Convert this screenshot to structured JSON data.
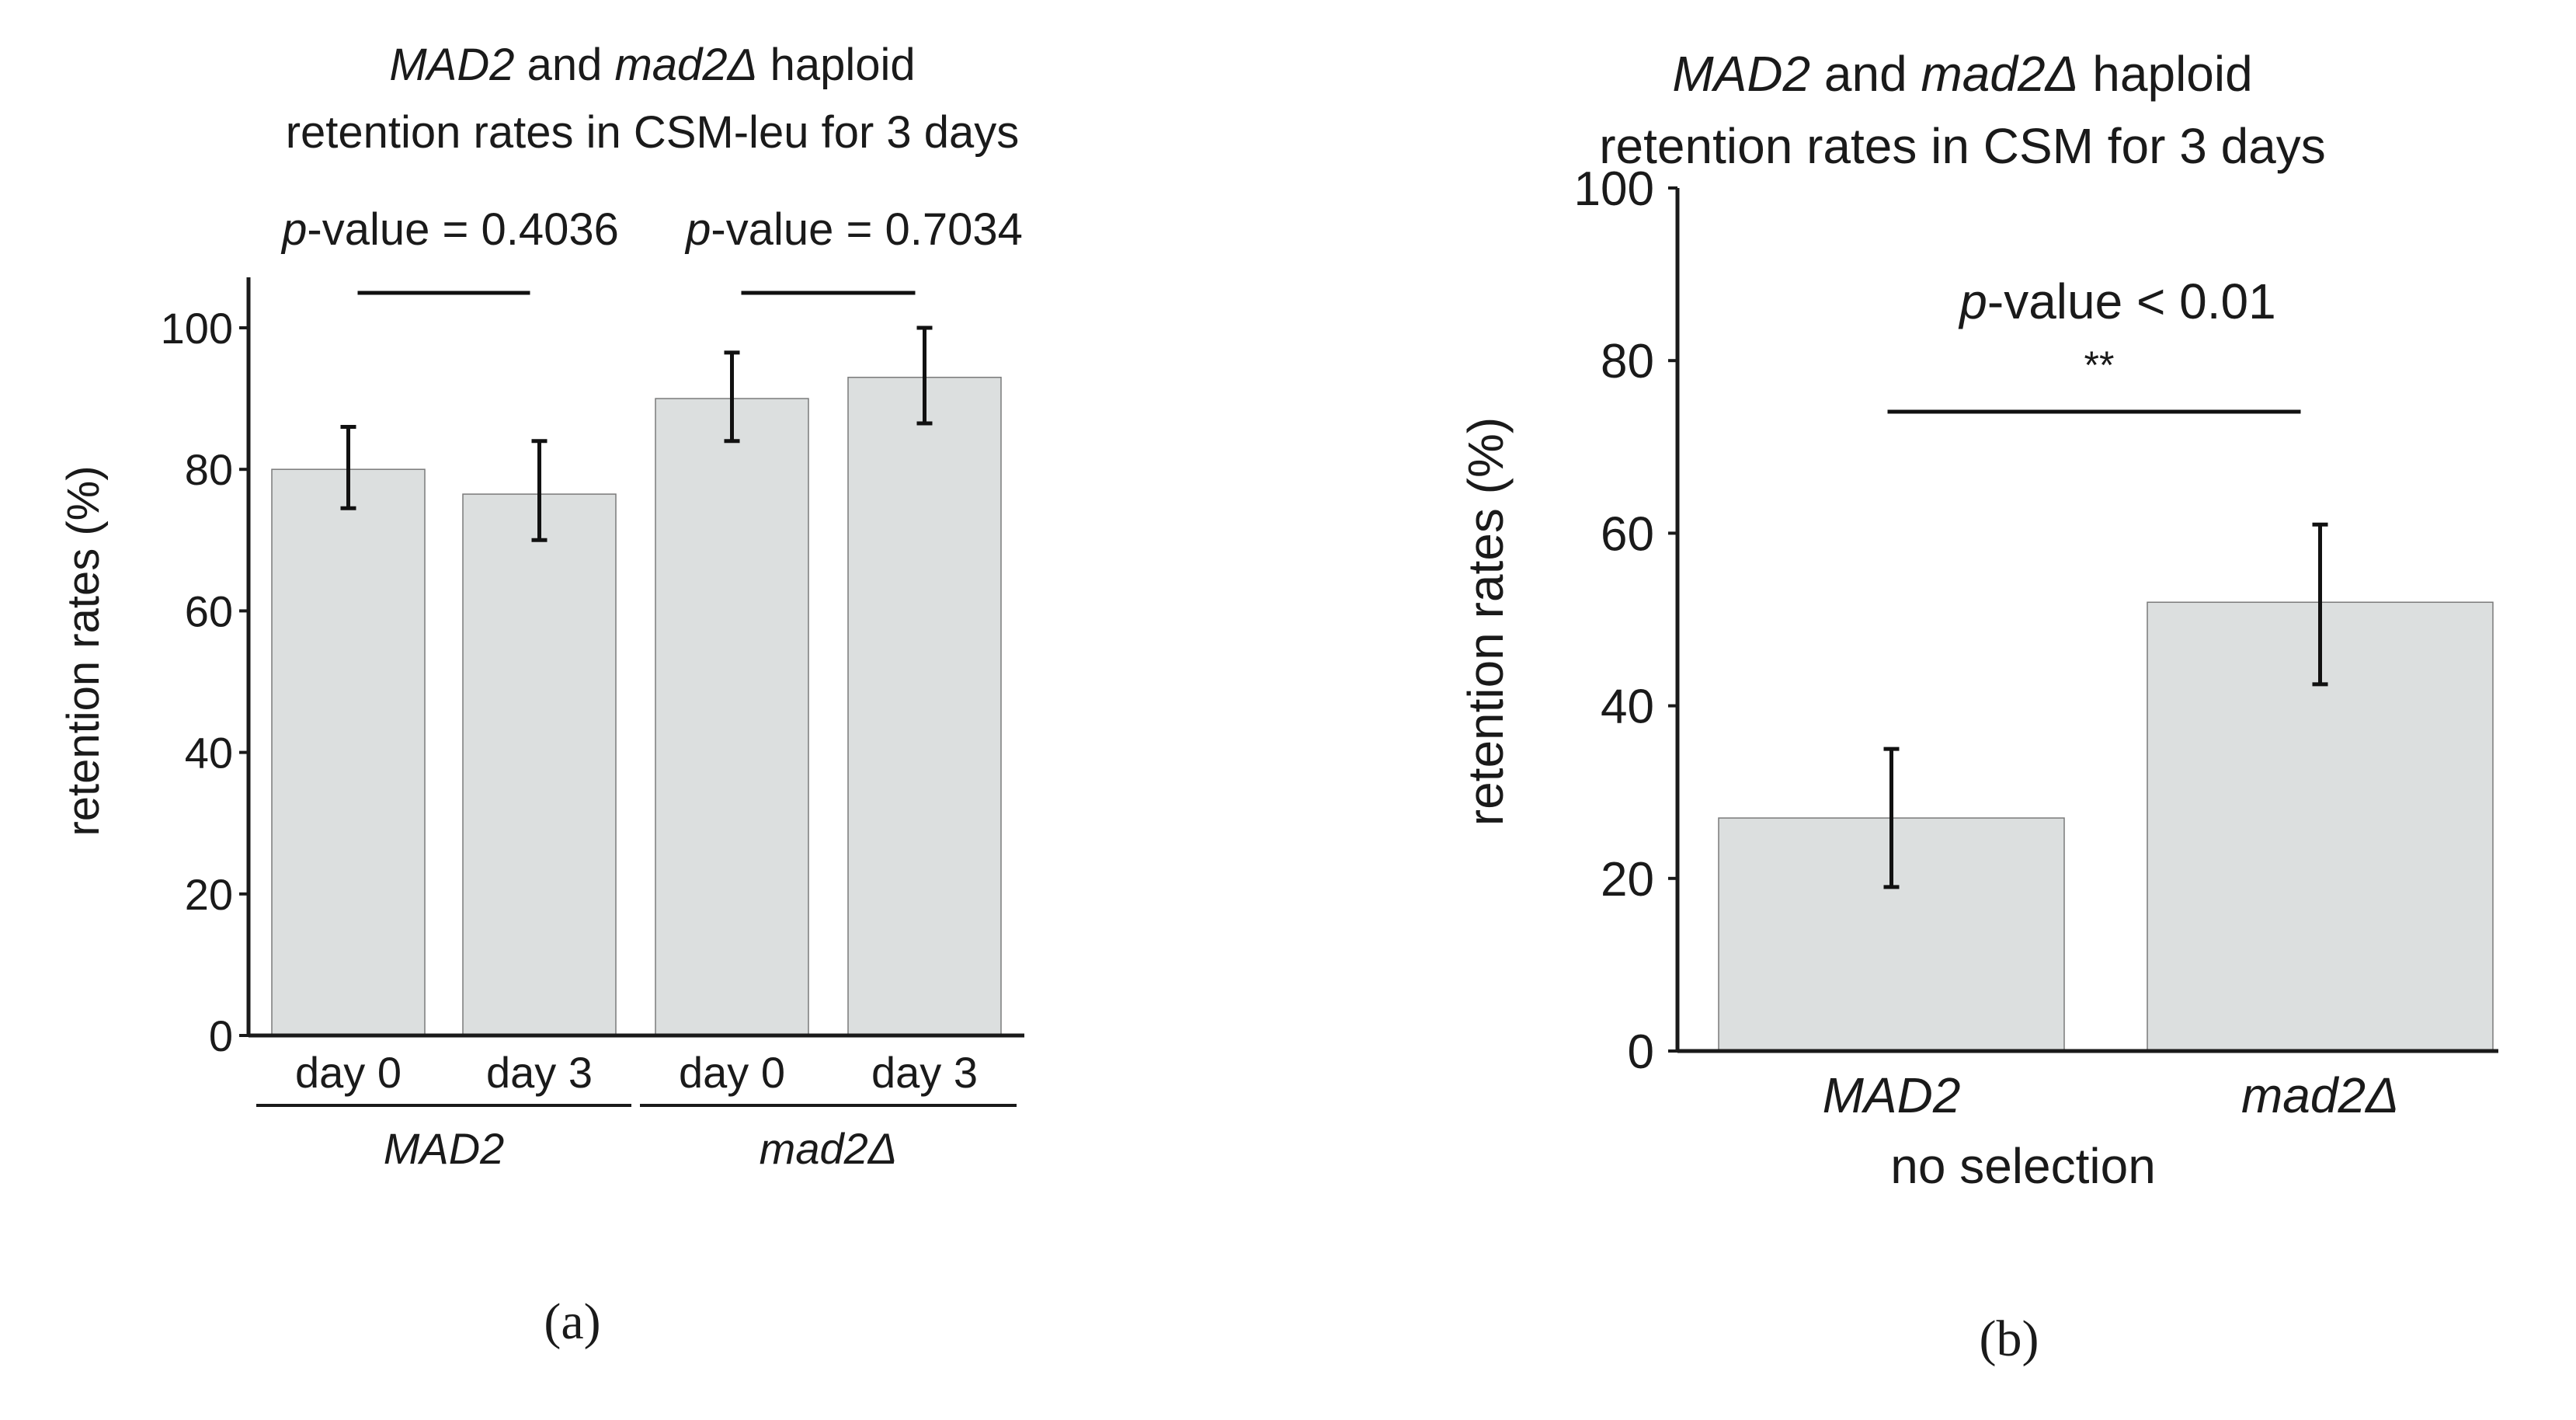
{
  "chart_data": [
    {
      "type": "bar",
      "panel": "(a)",
      "title": [
        "MAD2 and mad2Δ haploid",
        "retention rates in CSM-leu for 3 days"
      ],
      "ylabel": "retention rates (%)",
      "ylim": [
        0,
        100
      ],
      "yticks": [
        0,
        20,
        40,
        60,
        80,
        100
      ],
      "categories": [
        "day 0",
        "day 3",
        "day 0",
        "day 3"
      ],
      "groups": [
        {
          "name": "MAD2",
          "members": [
            0,
            1
          ]
        },
        {
          "name": "mad2Δ",
          "members": [
            2,
            3
          ]
        }
      ],
      "values": [
        80,
        76.5,
        90,
        93
      ],
      "error_low": [
        74.5,
        70,
        84,
        86.5
      ],
      "error_high": [
        86,
        84,
        96.5,
        100
      ],
      "comparisons": [
        {
          "between": [
            0,
            1
          ],
          "label": "p-value = 0.4036"
        },
        {
          "between": [
            2,
            3
          ],
          "label": "p-value = 0.7034"
        }
      ],
      "bar_color": "#dcdfdf"
    },
    {
      "type": "bar",
      "panel": "(b)",
      "title": [
        "MAD2 and mad2Δ haploid",
        "retention rates in CSM for 3 days"
      ],
      "ylabel": "retention rates (%)",
      "xlabel": "no selection",
      "ylim": [
        0,
        100
      ],
      "yticks": [
        0,
        20,
        40,
        60,
        80,
        100
      ],
      "categories": [
        "MAD2",
        "mad2Δ"
      ],
      "values": [
        27,
        52
      ],
      "error_low": [
        19,
        42.5
      ],
      "error_high": [
        35,
        61
      ],
      "comparisons": [
        {
          "between": [
            0,
            1
          ],
          "label": "p-value < 0.01",
          "stars": "**"
        }
      ],
      "bar_color": "#dcdfdf"
    }
  ]
}
